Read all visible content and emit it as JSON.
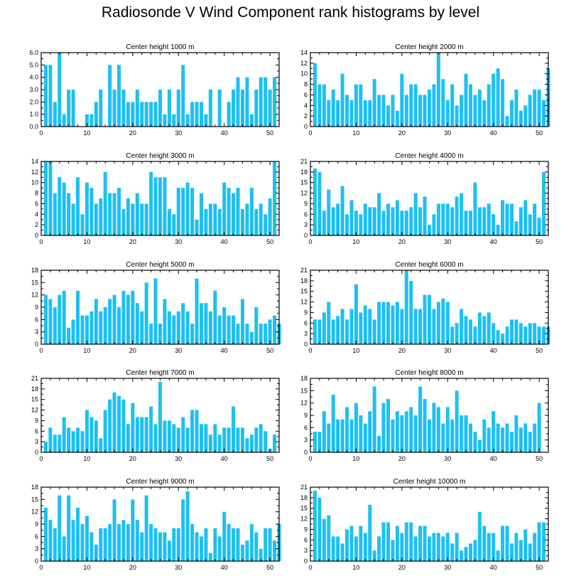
{
  "title": "Radiosonde V Wind Component rank histograms by level",
  "colors": {
    "bar": "#1ec0f0",
    "axis": "#000000"
  },
  "chart_data": [
    {
      "type": "bar",
      "title": "Center height 1000 m",
      "xlim": [
        0,
        52
      ],
      "ylim": [
        0,
        6
      ],
      "xticks": [
        0,
        10,
        20,
        30,
        40,
        50
      ],
      "yticks": [
        0,
        1,
        2,
        3,
        4,
        5,
        6
      ],
      "ytick_labels": [
        "0.0",
        "1.0",
        "2.0",
        "3.0",
        "4.0",
        "5.0",
        "6.0"
      ],
      "values": [
        5,
        5,
        2,
        6,
        1,
        3,
        3,
        0,
        0,
        1,
        1,
        2,
        3,
        0,
        5,
        3,
        5,
        3,
        2,
        2,
        3,
        2,
        2,
        2,
        2,
        3,
        1,
        3,
        1,
        3,
        5,
        1,
        2,
        2,
        2,
        1,
        3,
        0,
        3,
        0,
        2,
        3,
        4,
        3,
        4,
        1,
        3,
        4,
        4,
        3,
        4
      ]
    },
    {
      "type": "bar",
      "title": "Center height 2000 m",
      "xlim": [
        0,
        52
      ],
      "ylim": [
        0,
        14
      ],
      "xticks": [
        0,
        10,
        20,
        30,
        40,
        50
      ],
      "yticks": [
        0,
        2,
        4,
        6,
        8,
        10,
        12,
        14
      ],
      "ytick_labels": [
        "0",
        "2",
        "4",
        "6",
        "8",
        "10",
        "12",
        "14"
      ],
      "values": [
        12,
        8,
        8,
        5,
        7,
        5,
        10,
        6,
        5,
        8,
        8,
        5,
        5,
        9,
        6,
        6,
        4,
        6,
        3,
        10,
        6,
        8,
        8,
        6,
        6,
        7,
        8,
        14,
        9,
        5,
        8,
        4,
        6,
        10,
        8,
        6,
        7,
        5,
        8,
        10,
        11,
        9,
        2,
        5,
        7,
        3,
        4,
        6,
        7,
        7,
        5,
        11
      ]
    },
    {
      "type": "bar",
      "title": "Center height 3000 m",
      "xlim": [
        0,
        52
      ],
      "ylim": [
        0,
        14
      ],
      "xticks": [
        0,
        10,
        20,
        30,
        40,
        50
      ],
      "yticks": [
        0,
        2,
        4,
        6,
        8,
        10,
        12,
        14
      ],
      "ytick_labels": [
        "0",
        "2",
        "4",
        "6",
        "8",
        "10",
        "12",
        "14"
      ],
      "values": [
        14,
        14,
        8,
        11,
        10,
        8,
        6,
        11,
        4,
        10,
        9,
        6,
        7,
        12,
        8,
        8,
        9,
        5,
        7,
        6,
        8,
        6,
        6,
        12,
        11,
        11,
        11,
        5,
        4,
        9,
        9,
        10,
        9,
        3,
        8,
        5,
        6,
        6,
        5,
        10,
        9,
        8,
        9,
        5,
        6,
        9,
        5,
        6,
        4,
        7,
        14
      ]
    },
    {
      "type": "bar",
      "title": "Center height 4000 m",
      "xlim": [
        0,
        52
      ],
      "ylim": [
        0,
        21
      ],
      "xticks": [
        0,
        10,
        20,
        30,
        40,
        50
      ],
      "yticks": [
        0,
        3,
        6,
        9,
        12,
        15,
        18,
        21
      ],
      "ytick_labels": [
        "0",
        "3",
        "6",
        "9",
        "12",
        "15",
        "18",
        "21"
      ],
      "values": [
        19,
        18,
        7,
        13,
        8,
        9,
        14,
        6,
        10,
        7,
        6,
        9,
        8,
        8,
        12,
        7,
        9,
        8,
        10,
        7,
        7,
        8,
        12,
        8,
        11,
        3,
        6,
        9,
        9,
        9,
        8,
        11,
        12,
        7,
        7,
        15,
        8,
        8,
        9,
        6,
        3,
        10,
        9,
        9,
        4,
        8,
        10,
        6,
        9,
        5,
        18
      ]
    },
    {
      "type": "bar",
      "title": "Center height 5000 m",
      "xlim": [
        0,
        52
      ],
      "ylim": [
        0,
        18
      ],
      "xticks": [
        0,
        10,
        20,
        30,
        40,
        50
      ],
      "yticks": [
        0,
        3,
        6,
        9,
        12,
        15,
        18
      ],
      "ytick_labels": [
        "0",
        "3",
        "6",
        "9",
        "12",
        "15",
        "18"
      ],
      "values": [
        12,
        11,
        9,
        12,
        13,
        4,
        6,
        13,
        7,
        7,
        8,
        11,
        8,
        9,
        11,
        12,
        9,
        13,
        12,
        13,
        10,
        8,
        15,
        5,
        16,
        5,
        11,
        8,
        7,
        8,
        10,
        8,
        5,
        16,
        10,
        10,
        8,
        13,
        7,
        9,
        7,
        7,
        5,
        11,
        5,
        3,
        9,
        5,
        5,
        6,
        7,
        5
      ]
    },
    {
      "type": "bar",
      "title": "Center height 6000 m",
      "xlim": [
        0,
        52
      ],
      "ylim": [
        0,
        21
      ],
      "xticks": [
        0,
        10,
        20,
        30,
        40,
        50
      ],
      "yticks": [
        0,
        3,
        6,
        9,
        12,
        15,
        18,
        21
      ],
      "ytick_labels": [
        "0",
        "3",
        "6",
        "9",
        "12",
        "15",
        "18",
        "21"
      ],
      "values": [
        7,
        7,
        9,
        12,
        7,
        8,
        10,
        7,
        10,
        17,
        9,
        11,
        10,
        7,
        12,
        12,
        12,
        11,
        12,
        10,
        21,
        18,
        10,
        10,
        14,
        14,
        10,
        12,
        13,
        12,
        5,
        6,
        10,
        8,
        7,
        5,
        9,
        8,
        9,
        6,
        4,
        3,
        5,
        7,
        7,
        6,
        5,
        6,
        6,
        5,
        5,
        5
      ]
    },
    {
      "type": "bar",
      "title": "Center height 7000 m",
      "xlim": [
        0,
        52
      ],
      "ylim": [
        0,
        21
      ],
      "xticks": [
        0,
        10,
        20,
        30,
        40,
        50
      ],
      "yticks": [
        0,
        3,
        6,
        9,
        12,
        15,
        18,
        21
      ],
      "ytick_labels": [
        "0",
        "3",
        "6",
        "9",
        "12",
        "15",
        "18",
        "21"
      ],
      "values": [
        3,
        7,
        5,
        5,
        10,
        7,
        6,
        7,
        6,
        12,
        10,
        9,
        4,
        12,
        15,
        17,
        16,
        15,
        8,
        14,
        10,
        10,
        10,
        13,
        8,
        20,
        9,
        9,
        8,
        7,
        10,
        7,
        12,
        12,
        8,
        8,
        5,
        8,
        5,
        7,
        7,
        13,
        7,
        7,
        4,
        5,
        7,
        8,
        6,
        1,
        5
      ]
    },
    {
      "type": "bar",
      "title": "Center height 8000 m",
      "xlim": [
        0,
        52
      ],
      "ylim": [
        0,
        18
      ],
      "xticks": [
        0,
        10,
        20,
        30,
        40,
        50
      ],
      "yticks": [
        0,
        3,
        6,
        9,
        12,
        15,
        18
      ],
      "ytick_labels": [
        "0",
        "3",
        "6",
        "9",
        "12",
        "15",
        "18"
      ],
      "values": [
        5,
        5,
        10,
        7,
        14,
        8,
        8,
        11,
        8,
        12,
        9,
        7,
        10,
        16,
        4,
        12,
        13,
        8,
        10,
        9,
        10,
        11,
        9,
        16,
        13,
        8,
        12,
        11,
        7,
        11,
        8,
        15,
        9,
        9,
        7,
        5,
        3,
        8,
        6,
        10,
        7,
        6,
        7,
        5,
        9,
        6,
        7,
        5,
        7,
        12
      ]
    },
    {
      "type": "bar",
      "title": "Center height 9000 m",
      "xlim": [
        0,
        52
      ],
      "ylim": [
        0,
        18
      ],
      "xticks": [
        0,
        10,
        20,
        30,
        40,
        50
      ],
      "yticks": [
        0,
        3,
        6,
        9,
        12,
        15,
        18
      ],
      "ytick_labels": [
        "0",
        "3",
        "6",
        "9",
        "12",
        "15",
        "18"
      ],
      "values": [
        13,
        10,
        8,
        16,
        6,
        16,
        10,
        13,
        9,
        11,
        7,
        4,
        8,
        8,
        9,
        15,
        9,
        10,
        9,
        15,
        10,
        7,
        16,
        9,
        8,
        7,
        7,
        5,
        8,
        8,
        15,
        17,
        9,
        7,
        6,
        8,
        2,
        8,
        6,
        12,
        9,
        8,
        8,
        4,
        5,
        9,
        7,
        3,
        8,
        8,
        5,
        9
      ]
    },
    {
      "type": "bar",
      "title": "Center height 10000 m",
      "xlim": [
        0,
        52
      ],
      "ylim": [
        0,
        21
      ],
      "xticks": [
        0,
        10,
        20,
        30,
        40,
        50
      ],
      "yticks": [
        0,
        3,
        6,
        9,
        12,
        15,
        18,
        21
      ],
      "ytick_labels": [
        "0",
        "3",
        "6",
        "9",
        "12",
        "15",
        "18",
        "21"
      ],
      "values": [
        20,
        18,
        12,
        13,
        7,
        7,
        5,
        9,
        10,
        7,
        10,
        8,
        16,
        3,
        7,
        11,
        11,
        6,
        10,
        8,
        11,
        11,
        7,
        10,
        10,
        7,
        8,
        8,
        7,
        8,
        5,
        8,
        3,
        4,
        5,
        6,
        14,
        10,
        8,
        8,
        3,
        10,
        10,
        5,
        8,
        6,
        9,
        5,
        8,
        11,
        11
      ]
    }
  ]
}
